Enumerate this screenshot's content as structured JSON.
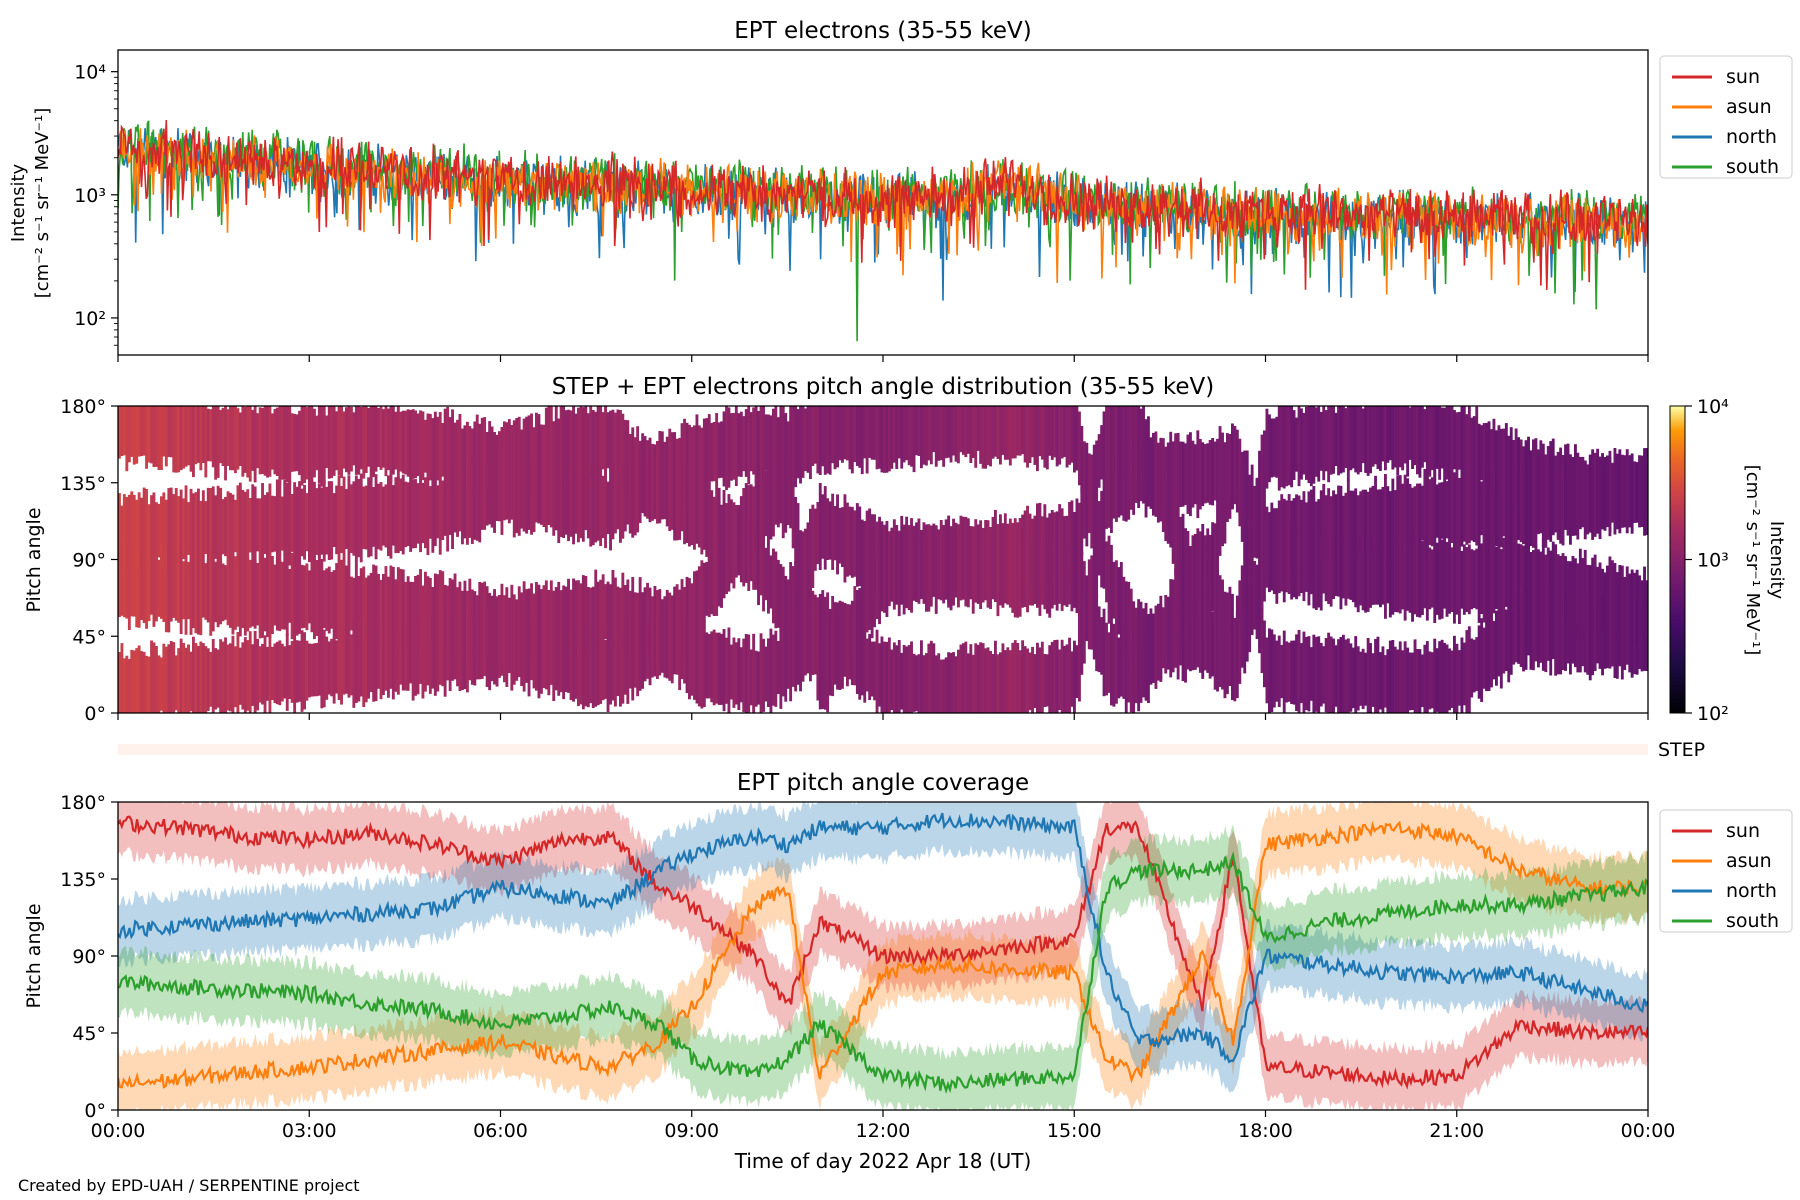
{
  "credit": "Created by EPD-UAH / SERPENTINE project",
  "colors": {
    "sun": "#d62728",
    "asun": "#ff7f0e",
    "north": "#1f77b4",
    "south": "#2ca02c",
    "step_band": "#fff1ec"
  },
  "x_axis": {
    "label": "Time of day 2022 Apr 18 (UT)",
    "range_hours": [
      0,
      24
    ],
    "tick_labels": [
      "00:00",
      "03:00",
      "06:00",
      "09:00",
      "12:00",
      "15:00",
      "18:00",
      "21:00",
      "00:00"
    ]
  },
  "step_label": "STEP",
  "chart_data": [
    {
      "type": "line",
      "title": "EPT electrons (35-55 keV)",
      "ylabel": [
        "Intensity",
        "[cm⁻² s⁻¹ sr⁻¹ MeV⁻¹]"
      ],
      "yscale": "log",
      "ylim": [
        50,
        15000
      ],
      "yticks": [
        {
          "value": 100,
          "label": "10²"
        },
        {
          "value": 1000,
          "label": "10³"
        },
        {
          "value": 10000,
          "label": "10⁴"
        }
      ],
      "legend": "outside-right",
      "x_hours": [
        0,
        1,
        2,
        3,
        4,
        5,
        6,
        7,
        8,
        9,
        10,
        11,
        12,
        13,
        14,
        15,
        16,
        17,
        18,
        19,
        20,
        21,
        22,
        23,
        24
      ],
      "series": [
        {
          "name": "sun",
          "values": [
            2600,
            2200,
            1900,
            1750,
            1600,
            1450,
            1350,
            1300,
            1250,
            1150,
            1050,
            1000,
            950,
            980,
            1300,
            900,
            820,
            780,
            720,
            700,
            680,
            680,
            660,
            640,
            600
          ]
        },
        {
          "name": "asun",
          "values": [
            2500,
            2100,
            1850,
            1700,
            1550,
            1400,
            1300,
            1250,
            1200,
            1100,
            1000,
            950,
            920,
            950,
            1250,
            870,
            800,
            760,
            700,
            680,
            660,
            660,
            640,
            620,
            580
          ]
        },
        {
          "name": "north",
          "values": [
            2400,
            2050,
            1800,
            1650,
            1500,
            1380,
            1280,
            1220,
            1180,
            1080,
            980,
            930,
            900,
            930,
            1150,
            850,
            780,
            740,
            680,
            660,
            640,
            640,
            620,
            600,
            560
          ]
        },
        {
          "name": "south",
          "values": [
            2700,
            2300,
            2000,
            1800,
            1650,
            1500,
            1400,
            1330,
            1280,
            1180,
            1080,
            1020,
            970,
            1000,
            1200,
            920,
            840,
            800,
            740,
            720,
            700,
            700,
            680,
            660,
            620
          ]
        }
      ]
    },
    {
      "type": "heatmap",
      "title": "STEP + EPT electrons pitch angle distribution (35-55 keV)",
      "ylabel": "Pitch angle",
      "ylim": [
        0,
        180
      ],
      "yticks": [
        "0°",
        "45°",
        "90°",
        "135°",
        "180°"
      ],
      "colorbar": {
        "label": [
          "Intensity",
          "[cm⁻² s⁻¹ sr⁻¹ MeV⁻¹]"
        ],
        "scale": "log",
        "range": [
          100,
          10000
        ],
        "tick_labels": [
          "10²",
          "10³",
          "10⁴"
        ],
        "colormap": "inferno"
      }
    },
    {
      "type": "line",
      "title": "EPT pitch angle coverage",
      "ylabel": "Pitch angle",
      "ylim": [
        0,
        180
      ],
      "yticks": [
        "0°",
        "45°",
        "90°",
        "135°",
        "180°"
      ],
      "legend": "outside-right",
      "shaded_band_deg": 18,
      "x_hours": [
        0,
        1,
        2,
        3,
        4,
        5,
        6,
        7,
        7.7,
        8.5,
        9,
        10,
        10.5,
        11,
        12,
        13,
        14,
        15,
        15.5,
        16,
        17,
        17.5,
        18,
        19,
        20,
        21,
        22,
        23,
        24
      ],
      "series": [
        {
          "name": "sun",
          "values": [
            168,
            165,
            160,
            158,
            162,
            155,
            145,
            158,
            160,
            130,
            120,
            90,
            60,
            110,
            90,
            90,
            95,
            100,
            165,
            165,
            60,
            150,
            25,
            22,
            18,
            20,
            50,
            45,
            45
          ]
        },
        {
          "name": "asun",
          "values": [
            15,
            18,
            22,
            25,
            30,
            35,
            40,
            30,
            25,
            40,
            60,
            120,
            130,
            20,
            80,
            85,
            82,
            80,
            30,
            20,
            90,
            40,
            155,
            160,
            165,
            160,
            140,
            130,
            130
          ]
        },
        {
          "name": "north",
          "values": [
            105,
            108,
            110,
            112,
            115,
            118,
            130,
            125,
            120,
            140,
            150,
            160,
            155,
            165,
            165,
            170,
            168,
            165,
            80,
            40,
            45,
            30,
            90,
            85,
            80,
            78,
            80,
            70,
            60
          ]
        },
        {
          "name": "south",
          "values": [
            75,
            72,
            70,
            68,
            62,
            58,
            50,
            55,
            60,
            50,
            30,
            20,
            30,
            50,
            20,
            15,
            18,
            20,
            130,
            140,
            140,
            145,
            100,
            110,
            115,
            120,
            120,
            125,
            130
          ]
        }
      ]
    }
  ]
}
